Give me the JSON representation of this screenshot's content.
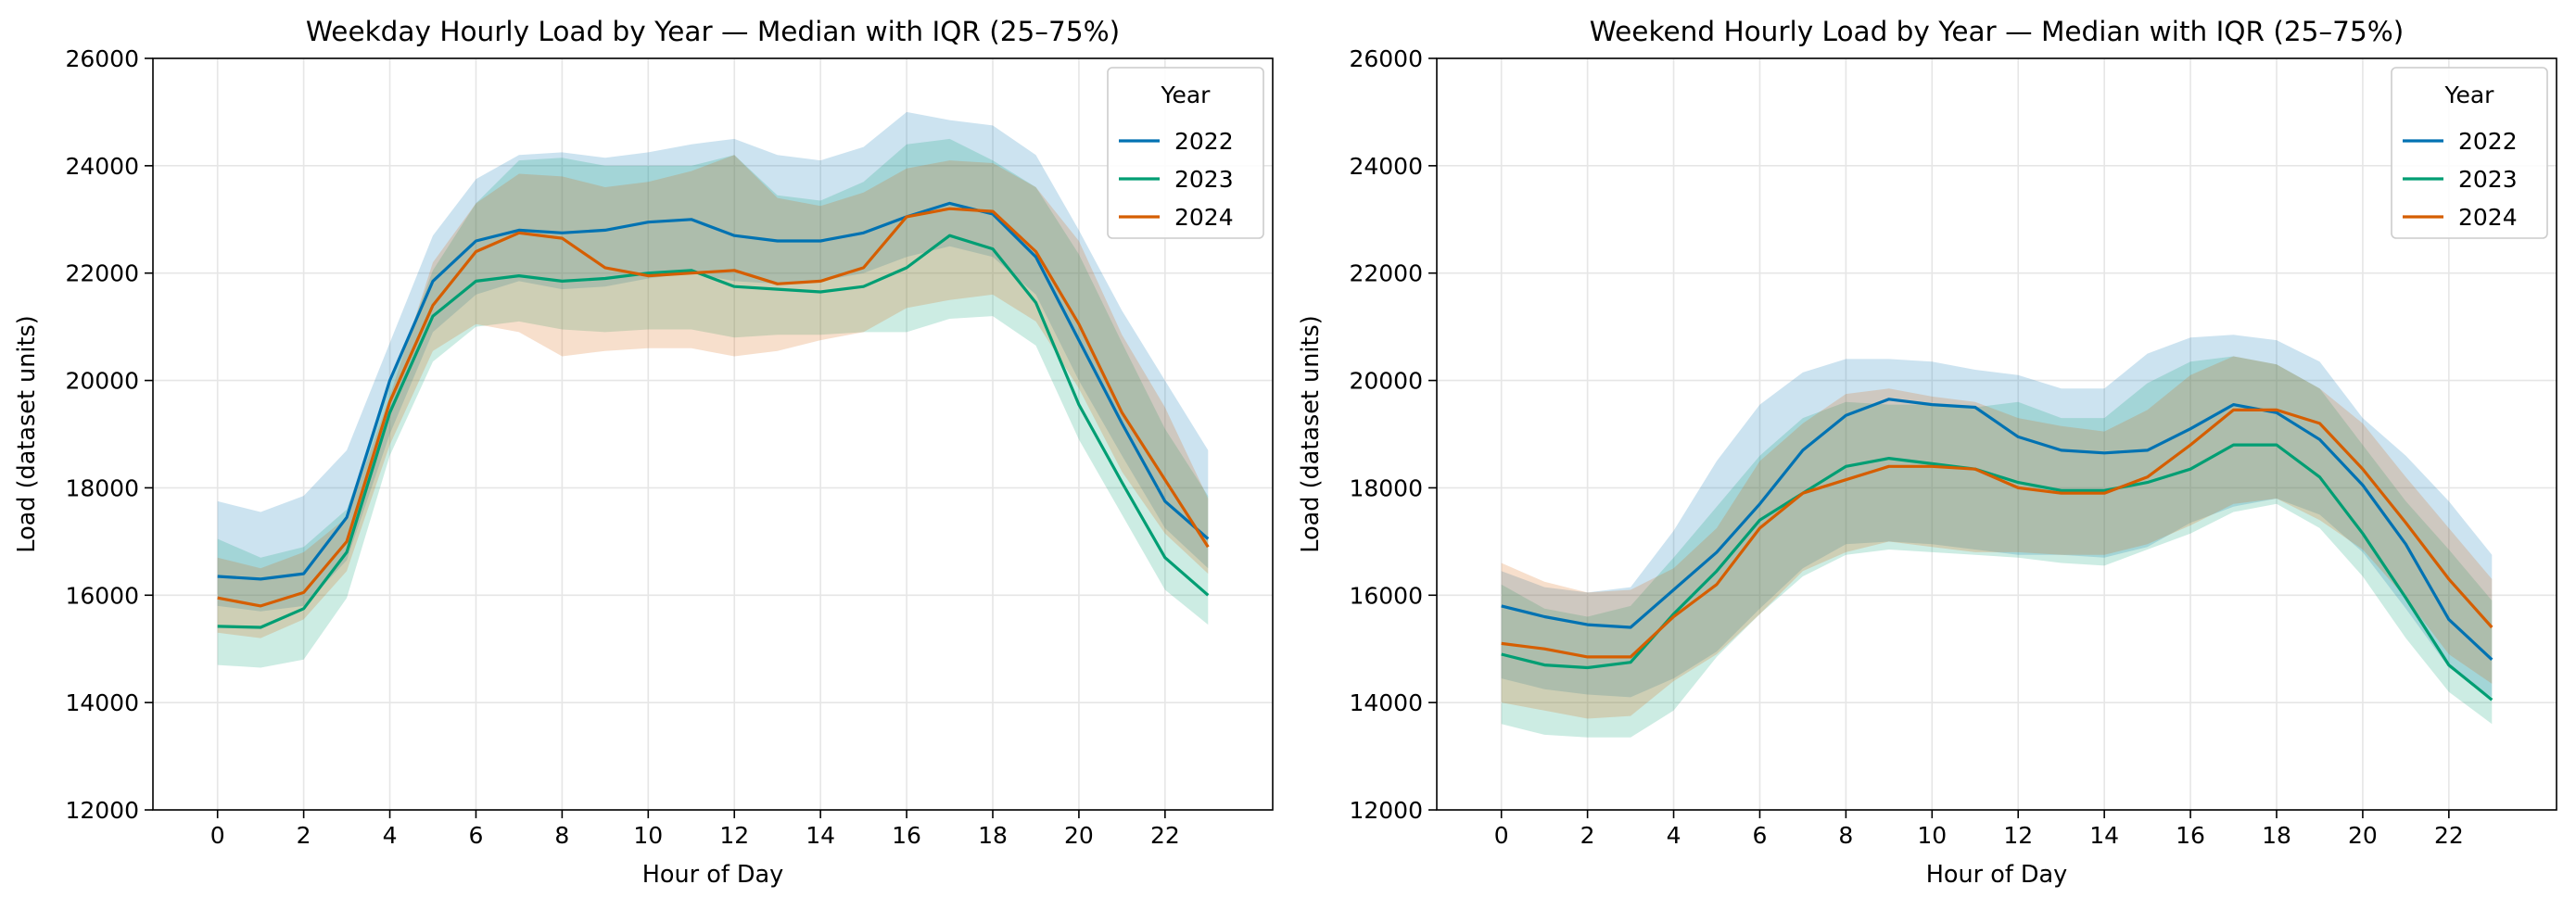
{
  "chart_data": [
    {
      "type": "line",
      "title": "Weekday Hourly Load by Year — Median with IQR (25–75%)",
      "xlabel": "Hour of Day",
      "ylabel": "Load (dataset units)",
      "xlim": [
        -1.5,
        24.5
      ],
      "ylim": [
        12000,
        26000
      ],
      "xticks": [
        "0",
        "2",
        "4",
        "6",
        "8",
        "10",
        "12",
        "14",
        "16",
        "18",
        "20",
        "22"
      ],
      "yticks": [
        "12000",
        "14000",
        "16000",
        "18000",
        "20000",
        "22000",
        "24000",
        "26000"
      ],
      "grid": true,
      "legend": {
        "title": "Year",
        "position": "top-right"
      },
      "x": [
        0,
        1,
        2,
        3,
        4,
        5,
        6,
        7,
        8,
        9,
        10,
        11,
        12,
        13,
        14,
        15,
        16,
        17,
        18,
        19,
        20,
        21,
        22,
        23
      ],
      "series": [
        {
          "name": "2022",
          "color": "#0072b2",
          "median": [
            16350,
            16300,
            16400,
            17450,
            20000,
            21850,
            22600,
            22800,
            22750,
            22800,
            22950,
            23000,
            22700,
            22600,
            22600,
            22750,
            23050,
            23300,
            23100,
            22300,
            20750,
            19200,
            17750,
            17050
          ],
          "q25": [
            15800,
            15700,
            15800,
            16650,
            19000,
            20900,
            21600,
            21850,
            21700,
            21750,
            21900,
            22000,
            21850,
            21800,
            21850,
            22000,
            22300,
            22500,
            22300,
            21600,
            20000,
            18600,
            17250,
            16500
          ],
          "q75": [
            17750,
            17550,
            17850,
            18700,
            20700,
            22700,
            23750,
            24200,
            24250,
            24150,
            24250,
            24400,
            24500,
            24200,
            24100,
            24350,
            25000,
            24850,
            24750,
            24200,
            22800,
            21300,
            20000,
            18700
          ]
        },
        {
          "name": "2023",
          "color": "#009e73",
          "median": [
            15420,
            15400,
            15750,
            16800,
            19400,
            21200,
            21850,
            21950,
            21850,
            21900,
            22000,
            22050,
            21750,
            21700,
            21650,
            21750,
            22100,
            22700,
            22450,
            21450,
            19550,
            18100,
            16700,
            16000
          ],
          "q25": [
            14700,
            14650,
            14800,
            15950,
            18600,
            20350,
            21000,
            21100,
            20950,
            20900,
            20950,
            20950,
            20800,
            20850,
            20850,
            20900,
            20900,
            21150,
            21200,
            20650,
            18900,
            17500,
            16100,
            15450
          ],
          "q75": [
            17050,
            16700,
            16900,
            17600,
            19900,
            22050,
            23300,
            24100,
            24150,
            24000,
            24000,
            24000,
            24200,
            23450,
            23350,
            23700,
            24400,
            24500,
            24100,
            23600,
            22350,
            20700,
            19100,
            17850
          ]
        },
        {
          "name": "2024",
          "color": "#d55e00",
          "median": [
            15950,
            15800,
            16050,
            17000,
            19600,
            21400,
            22400,
            22750,
            22650,
            22100,
            21950,
            22000,
            22050,
            21800,
            21850,
            22100,
            23050,
            23200,
            23150,
            22400,
            21050,
            19400,
            18150,
            16900
          ],
          "q25": [
            15300,
            15200,
            15550,
            16450,
            18800,
            20550,
            21050,
            20900,
            20450,
            20550,
            20600,
            20600,
            20450,
            20550,
            20750,
            20900,
            21350,
            21500,
            21600,
            21100,
            19850,
            18300,
            17150,
            16400
          ],
          "q75": [
            16700,
            16500,
            16800,
            17450,
            19700,
            22200,
            23300,
            23850,
            23800,
            23600,
            23700,
            23900,
            24200,
            23400,
            23250,
            23500,
            23950,
            24100,
            24050,
            23600,
            22600,
            20850,
            19500,
            17800
          ]
        }
      ]
    },
    {
      "type": "line",
      "title": "Weekend Hourly Load by Year — Median with IQR (25–75%)",
      "xlabel": "Hour of Day",
      "ylabel": "Load (dataset units)",
      "xlim": [
        -1.5,
        24.5
      ],
      "ylim": [
        12000,
        26000
      ],
      "xticks": [
        "0",
        "2",
        "4",
        "6",
        "8",
        "10",
        "12",
        "14",
        "16",
        "18",
        "20",
        "22"
      ],
      "yticks": [
        "12000",
        "14000",
        "16000",
        "18000",
        "20000",
        "22000",
        "24000",
        "26000"
      ],
      "grid": true,
      "legend": {
        "title": "Year",
        "position": "top-right"
      },
      "x": [
        0,
        1,
        2,
        3,
        4,
        5,
        6,
        7,
        8,
        9,
        10,
        11,
        12,
        13,
        14,
        15,
        16,
        17,
        18,
        19,
        20,
        21,
        22,
        23
      ],
      "series": [
        {
          "name": "2022",
          "color": "#0072b2",
          "median": [
            15800,
            15600,
            15450,
            15400,
            16100,
            16800,
            17700,
            18700,
            19350,
            19650,
            19550,
            19500,
            18950,
            18700,
            18650,
            18700,
            19100,
            19550,
            19400,
            18900,
            18050,
            16950,
            15550,
            14800
          ],
          "q25": [
            14450,
            14250,
            14150,
            14100,
            14450,
            14950,
            15750,
            16500,
            16950,
            17000,
            16950,
            16850,
            16750,
            16750,
            16700,
            16900,
            17350,
            17650,
            17800,
            17500,
            16800,
            15750,
            14650,
            14100
          ],
          "q75": [
            16450,
            16150,
            16050,
            16150,
            17200,
            18500,
            19550,
            20150,
            20400,
            20400,
            20350,
            20200,
            20100,
            19850,
            19850,
            20500,
            20800,
            20850,
            20750,
            20350,
            19300,
            18600,
            17750,
            16750
          ]
        },
        {
          "name": "2023",
          "color": "#009e73",
          "median": [
            14900,
            14700,
            14650,
            14750,
            15650,
            16450,
            17400,
            17900,
            18400,
            18550,
            18450,
            18350,
            18100,
            17950,
            17950,
            18100,
            18350,
            18800,
            18800,
            18200,
            17150,
            15950,
            14700,
            14050
          ],
          "q25": [
            13600,
            13400,
            13350,
            13350,
            13850,
            14850,
            15650,
            16350,
            16750,
            16850,
            16800,
            16750,
            16700,
            16600,
            16550,
            16850,
            17150,
            17550,
            17700,
            17250,
            16350,
            15200,
            14200,
            13600
          ],
          "q75": [
            16200,
            15750,
            15600,
            15800,
            16700,
            17650,
            18600,
            19300,
            19600,
            19550,
            19550,
            19500,
            19600,
            19300,
            19300,
            19950,
            20350,
            20450,
            20300,
            19850,
            18800,
            17750,
            16850,
            15900
          ]
        },
        {
          "name": "2024",
          "color": "#d55e00",
          "median": [
            15100,
            15000,
            14850,
            14850,
            15600,
            16200,
            17250,
            17900,
            18150,
            18400,
            18400,
            18350,
            18000,
            17900,
            17900,
            18200,
            18800,
            19450,
            19450,
            19200,
            18350,
            17350,
            16300,
            15400
          ],
          "q25": [
            14000,
            13850,
            13700,
            13750,
            14400,
            14900,
            15650,
            16450,
            16800,
            17000,
            16900,
            16800,
            16800,
            16750,
            16750,
            16950,
            17300,
            17700,
            17800,
            17400,
            16850,
            15950,
            14900,
            14350
          ],
          "q75": [
            16600,
            16250,
            16050,
            16100,
            16500,
            17250,
            18500,
            19200,
            19750,
            19850,
            19700,
            19600,
            19300,
            19150,
            19050,
            19450,
            20100,
            20450,
            20300,
            19850,
            19200,
            18200,
            17250,
            16300
          ]
        }
      ]
    }
  ]
}
